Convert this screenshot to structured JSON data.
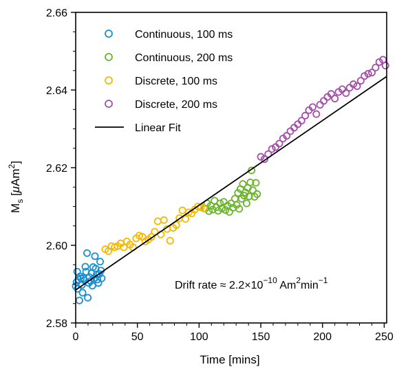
{
  "chart_data": {
    "type": "scatter",
    "xlabel": "Time [mins]",
    "ylabel_main": "M",
    "ylabel_sub": "s",
    "ylabel_unit_pre": " [",
    "ylabel_mu": "μ",
    "ylabel_unit_mid": "Am",
    "ylabel_unit_sup": "2",
    "ylabel_unit_post": "]",
    "xlim": [
      0,
      252
    ],
    "ylim": [
      2.58,
      2.66
    ],
    "x_ticks": [
      0,
      50,
      100,
      150,
      200,
      250
    ],
    "x_tick_labels": [
      "0",
      "50",
      "100",
      "150",
      "200",
      "250"
    ],
    "y_ticks": [
      2.58,
      2.6,
      2.62,
      2.64,
      2.66
    ],
    "y_tick_labels": [
      "2.58",
      "2.60",
      "2.62",
      "2.64",
      "2.66"
    ],
    "grid": false,
    "legend_position": "top-left",
    "series": [
      {
        "name": "Continuous, 100 ms",
        "marker": "open-circle",
        "color": "#1a8fd0",
        "points": [
          [
            0,
            2.5895
          ],
          [
            0.7,
            2.5905
          ],
          [
            1.2,
            2.5932
          ],
          [
            1.6,
            2.5888
          ],
          [
            2.2,
            2.5912
          ],
          [
            3,
            2.5858
          ],
          [
            3.6,
            2.592
          ],
          [
            4.2,
            2.5915
          ],
          [
            5.1,
            2.5898
          ],
          [
            5.6,
            2.5878
          ],
          [
            6.2,
            2.5915
          ],
          [
            7,
            2.591
          ],
          [
            7.8,
            2.5945
          ],
          [
            8.4,
            2.5932
          ],
          [
            9.2,
            2.598
          ],
          [
            9.8,
            2.5865
          ],
          [
            10.6,
            2.5903
          ],
          [
            11.2,
            2.5918
          ],
          [
            12.1,
            2.5908
          ],
          [
            12.8,
            2.5928
          ],
          [
            13.5,
            2.5896
          ],
          [
            14.1,
            2.5944
          ],
          [
            14.8,
            2.5915
          ],
          [
            15.6,
            2.5972
          ],
          [
            16.2,
            2.594
          ],
          [
            17,
            2.5925
          ],
          [
            17.6,
            2.5912
          ],
          [
            18.4,
            2.5903
          ],
          [
            19.1,
            2.5926
          ],
          [
            19.8,
            2.5958
          ],
          [
            20.5,
            2.5935
          ],
          [
            21.1,
            2.5915
          ]
        ]
      },
      {
        "name": "Continuous, 200 ms",
        "marker": "open-circle",
        "color": "#6ab42d",
        "points": [
          [
            105,
            2.6095
          ],
          [
            106.5,
            2.6108
          ],
          [
            108,
            2.6088
          ],
          [
            109.5,
            2.6102
          ],
          [
            111,
            2.6092
          ],
          [
            112.5,
            2.6115
          ],
          [
            114,
            2.6098
          ],
          [
            115.5,
            2.6089
          ],
          [
            117,
            2.6108
          ],
          [
            118.5,
            2.6095
          ],
          [
            120,
            2.6112
          ],
          [
            121.5,
            2.6091
          ],
          [
            123,
            2.6102
          ],
          [
            124.5,
            2.6086
          ],
          [
            126,
            2.6108
          ],
          [
            127.5,
            2.6097
          ],
          [
            129,
            2.612
          ],
          [
            130.5,
            2.6104
          ],
          [
            131.5,
            2.6135
          ],
          [
            132.5,
            2.6094
          ],
          [
            133.5,
            2.6145
          ],
          [
            134.5,
            2.612
          ],
          [
            135.5,
            2.6158
          ],
          [
            136.5,
            2.6128
          ],
          [
            137.5,
            2.6136
          ],
          [
            138.5,
            2.6108
          ],
          [
            139.5,
            2.6148
          ],
          [
            140.5,
            2.6126
          ],
          [
            141.5,
            2.6162
          ],
          [
            142.5,
            2.6193
          ],
          [
            143.5,
            2.6142
          ],
          [
            145,
            2.6125
          ],
          [
            146,
            2.6161
          ],
          [
            147,
            2.6132
          ]
        ]
      },
      {
        "name": "Discrete, 100 ms",
        "marker": "open-circle",
        "color": "#f5b800",
        "points": [
          [
            24,
            2.599
          ],
          [
            26.5,
            2.5985
          ],
          [
            29,
            2.5998
          ],
          [
            31.5,
            2.5995
          ],
          [
            34,
            2.5998
          ],
          [
            36.5,
            2.6005
          ],
          [
            39,
            2.5995
          ],
          [
            41.5,
            2.601
          ],
          [
            44,
            2.6002
          ],
          [
            46.5,
            2.5995
          ],
          [
            49,
            2.6018
          ],
          [
            51.5,
            2.6025
          ],
          [
            54,
            2.6022
          ],
          [
            56.5,
            2.601
          ],
          [
            59,
            2.6015
          ],
          [
            61.5,
            2.6022
          ],
          [
            64,
            2.6035
          ],
          [
            66.5,
            2.6062
          ],
          [
            69,
            2.6028
          ],
          [
            71.5,
            2.6065
          ],
          [
            74,
            2.6042
          ],
          [
            76.5,
            2.6012
          ],
          [
            79,
            2.6045
          ],
          [
            81.5,
            2.6052
          ],
          [
            84,
            2.607
          ],
          [
            86.5,
            2.609
          ],
          [
            89,
            2.6068
          ],
          [
            91.5,
            2.6085
          ],
          [
            94,
            2.6082
          ],
          [
            96.5,
            2.6092
          ],
          [
            99,
            2.61
          ],
          [
            101.5,
            2.6098
          ],
          [
            104,
            2.6095
          ]
        ]
      },
      {
        "name": "Discrete, 200 ms",
        "marker": "open-circle",
        "color": "#a54fa8",
        "points": [
          [
            150,
            2.6228
          ],
          [
            153,
            2.6222
          ],
          [
            156,
            2.6235
          ],
          [
            159,
            2.6248
          ],
          [
            162,
            2.6253
          ],
          [
            165,
            2.6262
          ],
          [
            168,
            2.6275
          ],
          [
            171,
            2.6282
          ],
          [
            174,
            2.6294
          ],
          [
            177,
            2.6303
          ],
          [
            180,
            2.6312
          ],
          [
            183,
            2.6321
          ],
          [
            186,
            2.6334
          ],
          [
            189,
            2.6348
          ],
          [
            192,
            2.6356
          ],
          [
            195,
            2.6338
          ],
          [
            198,
            2.6362
          ],
          [
            201,
            2.6372
          ],
          [
            204,
            2.6382
          ],
          [
            207,
            2.639
          ],
          [
            210,
            2.6378
          ],
          [
            213,
            2.6395
          ],
          [
            216,
            2.6402
          ],
          [
            219,
            2.6392
          ],
          [
            222,
            2.6406
          ],
          [
            225,
            2.6415
          ],
          [
            228,
            2.641
          ],
          [
            231,
            2.6424
          ],
          [
            234,
            2.6436
          ],
          [
            237,
            2.6442
          ],
          [
            240,
            2.6445
          ],
          [
            243,
            2.6458
          ],
          [
            246,
            2.6472
          ],
          [
            249,
            2.6478
          ],
          [
            251,
            2.6463
          ]
        ]
      }
    ],
    "fit": {
      "name": "Linear Fit",
      "color": "#000000",
      "x": [
        0,
        252
      ],
      "y": [
        2.5885,
        2.6435
      ]
    },
    "annotation": {
      "prefix": "Drift rate ≈ 2.2×10",
      "exp1": "−10",
      "mid": " Am",
      "exp2": "2",
      "mid2": "min",
      "exp3": "−1"
    }
  }
}
